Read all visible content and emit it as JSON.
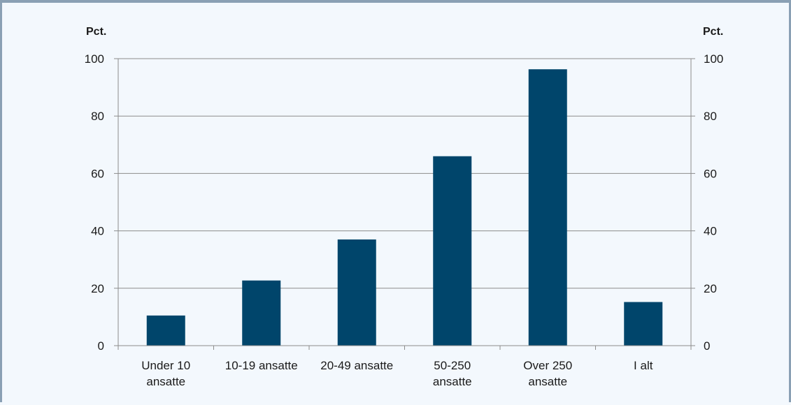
{
  "chart_data": {
    "type": "bar",
    "y_unit_left": "Pct.",
    "y_unit_right": "Pct.",
    "categories": [
      [
        "Under 10",
        "ansatte"
      ],
      [
        "10-19 ansatte"
      ],
      [
        "20-49 ansatte"
      ],
      [
        "50-250",
        "ansatte"
      ],
      [
        "Over 250",
        "ansatte"
      ],
      [
        "I alt"
      ]
    ],
    "values": [
      10.5,
      22.7,
      37.0,
      66.0,
      96.3,
      15.2
    ],
    "ylim": [
      0,
      100
    ],
    "yticks": [
      0,
      20,
      40,
      60,
      80,
      100
    ],
    "bar_color": "#00456b",
    "grid": true,
    "secondary_axis": true
  }
}
